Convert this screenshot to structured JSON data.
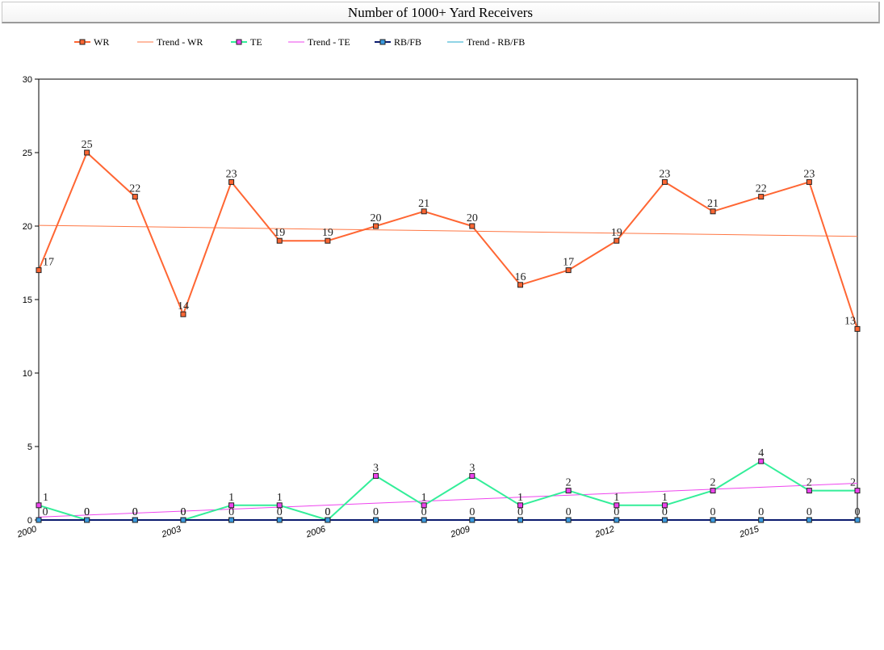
{
  "chart_data": {
    "type": "line",
    "title": "Number of 1000+ Yard Receivers",
    "xlabel": "",
    "ylabel": "",
    "x": [
      2000,
      2001,
      2002,
      2003,
      2004,
      2005,
      2006,
      2007,
      2008,
      2009,
      2010,
      2011,
      2012,
      2013,
      2014,
      2015,
      2016,
      2017
    ],
    "x_tick_labels": [
      "2000",
      "2003",
      "2006",
      "2009",
      "2012",
      "2015"
    ],
    "y_ticks": [
      "0",
      "5",
      "10",
      "15",
      "20",
      "25",
      "30"
    ],
    "ylim": [
      0,
      30
    ],
    "grid": false,
    "legend_position": "top-left",
    "series": [
      {
        "name": "WR",
        "color": "#ff6633",
        "marker_fill": "#ff6633",
        "values": [
          17,
          25,
          22,
          14,
          23,
          19,
          19,
          20,
          21,
          20,
          16,
          17,
          19,
          23,
          21,
          22,
          23,
          13
        ]
      },
      {
        "name": "TE",
        "color": "#33ee99",
        "marker_fill": "#ee44ee",
        "values": [
          1,
          0,
          0,
          0,
          1,
          1,
          0,
          3,
          1,
          3,
          1,
          2,
          1,
          1,
          2,
          4,
          2,
          2
        ]
      },
      {
        "name": "RB/FB",
        "color": "#0a1a6e",
        "marker_fill": "#3a9adf",
        "values": [
          0,
          0,
          0,
          0,
          0,
          0,
          0,
          0,
          0,
          0,
          0,
          0,
          0,
          0,
          0,
          0,
          0,
          0
        ]
      }
    ],
    "trend_lines": [
      {
        "name": "Trend - WR",
        "color": "#ff7744",
        "start": 20.05,
        "end": 19.3
      },
      {
        "name": "Trend - TE",
        "color": "#ee44ee",
        "start": 0.2,
        "end": 2.5
      },
      {
        "name": "Trend - RB/FB",
        "color": "#22aacc",
        "start": 0,
        "end": 0
      }
    ]
  },
  "legend": {
    "items": [
      {
        "label": "WR",
        "kind": "marker-line",
        "color": "#ff6633",
        "marker_fill": "#ff6633"
      },
      {
        "label": "Trend - WR",
        "kind": "line",
        "color": "#ff7744"
      },
      {
        "label": "TE",
        "kind": "marker-line",
        "color": "#33ee99",
        "marker_fill": "#ee44ee"
      },
      {
        "label": "Trend - TE",
        "kind": "line",
        "color": "#ee44ee"
      },
      {
        "label": "RB/FB",
        "kind": "marker-line",
        "color": "#0a1a6e",
        "marker_fill": "#3a9adf"
      },
      {
        "label": "Trend - RB/FB",
        "kind": "line",
        "color": "#22aacc"
      }
    ]
  }
}
